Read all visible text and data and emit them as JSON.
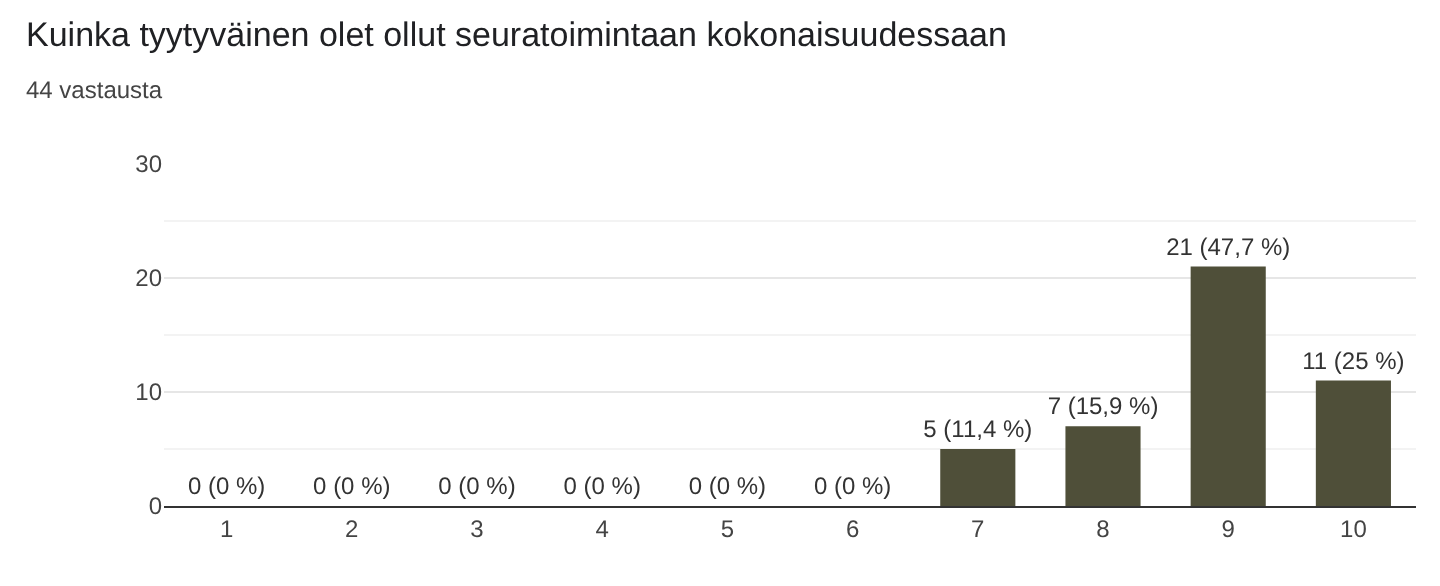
{
  "chart_data": {
    "type": "bar",
    "title": "Kuinka tyytyväinen olet ollut seuratoimintaan kokonaisuudessaan",
    "subtitle": "44 vastausta",
    "categories": [
      "1",
      "2",
      "3",
      "4",
      "5",
      "6",
      "7",
      "8",
      "9",
      "10"
    ],
    "values": [
      0,
      0,
      0,
      0,
      0,
      0,
      5,
      7,
      21,
      11
    ],
    "color": "#4f4f39",
    "value_labels": [
      "0 (0 %)",
      "0 (0 %)",
      "0 (0 %)",
      "0 (0 %)",
      "0 (0 %)",
      "0 (0 %)",
      "5 (11,4 %)",
      "7 (15,9 %)",
      "21 (47,7 %)",
      "11 (25 %)"
    ],
    "ylim": [
      0,
      30
    ],
    "yticks": [
      0,
      10,
      20,
      30
    ],
    "grid": "y",
    "legend": false
  }
}
